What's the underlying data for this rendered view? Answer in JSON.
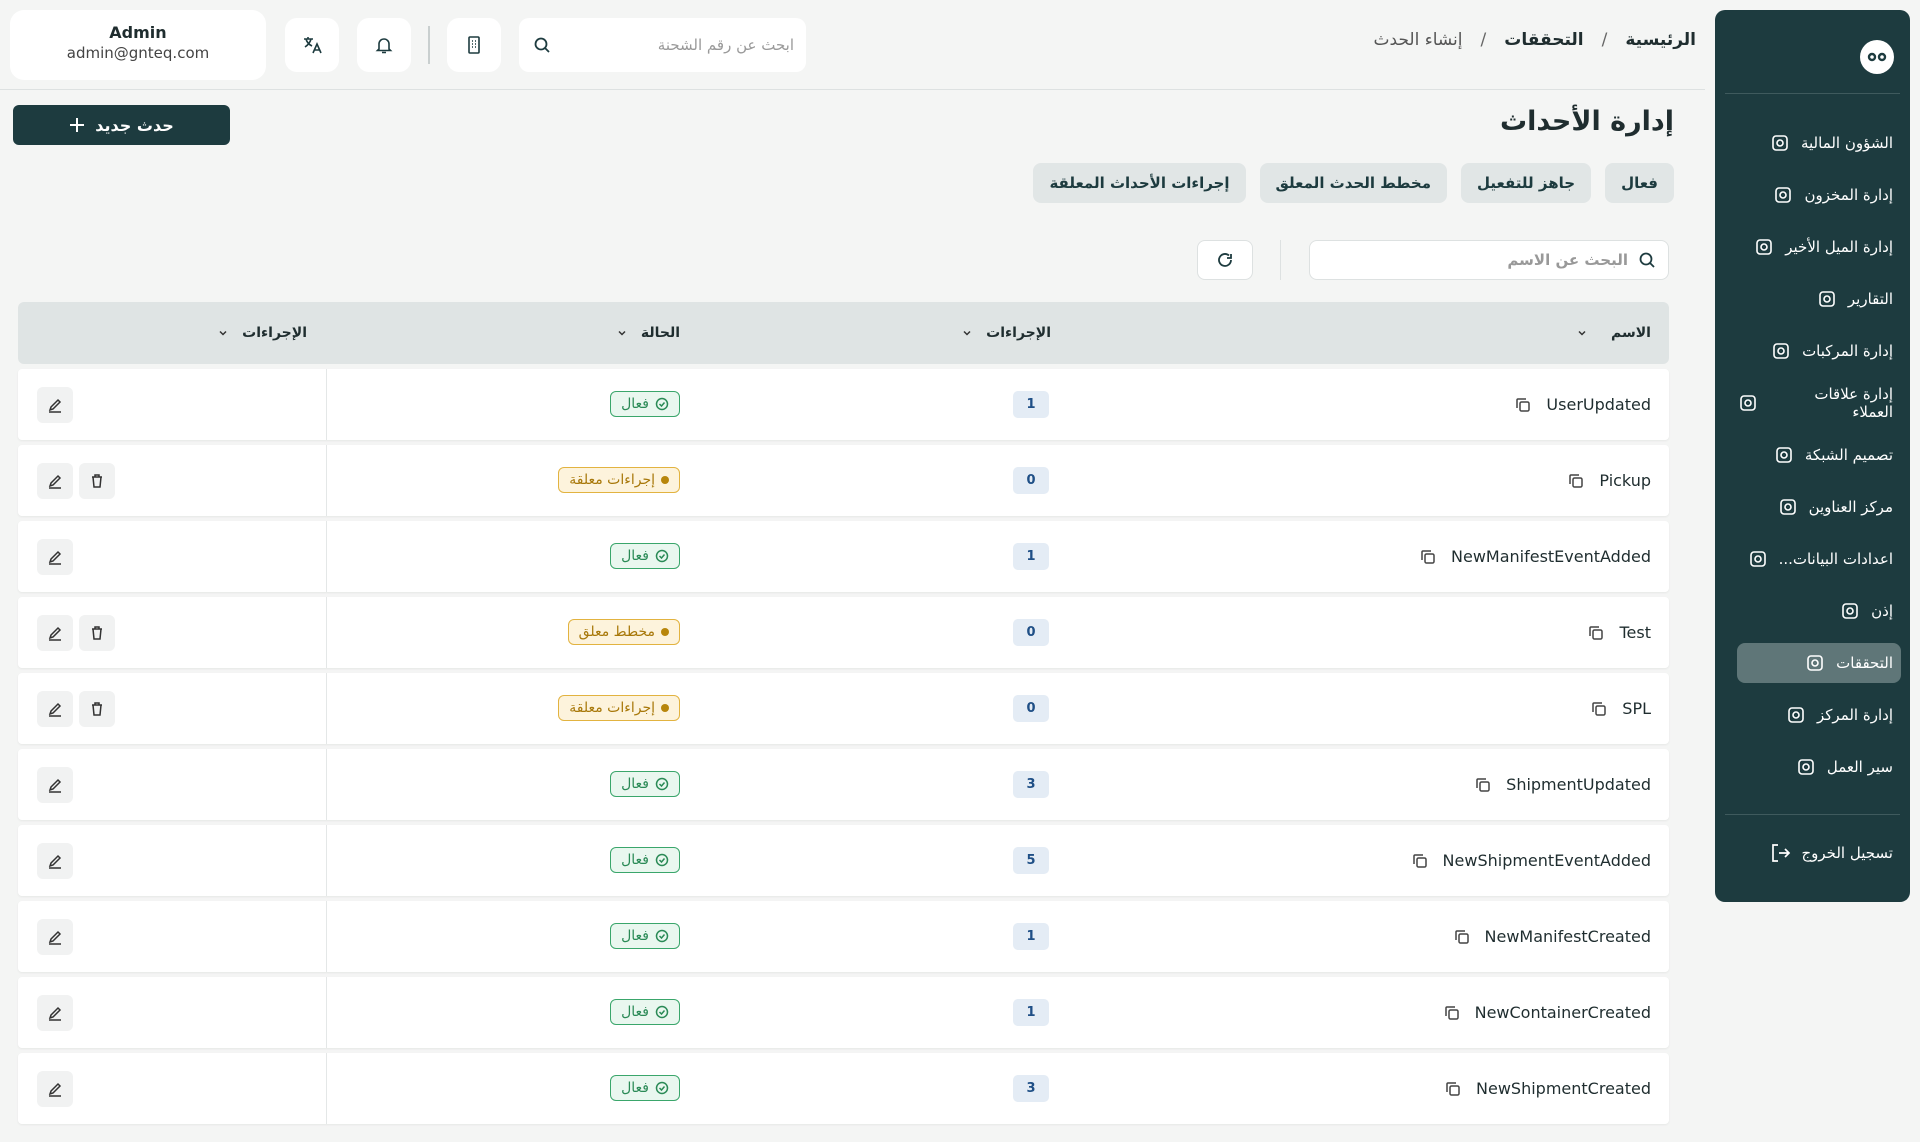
{
  "header": {
    "user_name": "Admin",
    "user_email": "admin@gnteq.com",
    "search_placeholder": "ابحث عن رقم الشحنة",
    "breadcrumb": [
      "الرئيسية",
      "التحققات",
      "إنشاء الحدث"
    ]
  },
  "sidebar": {
    "items": [
      {
        "label": "الشؤون المالية"
      },
      {
        "label": "إدارة المخزون"
      },
      {
        "label": "إدارة الميل الأخير"
      },
      {
        "label": "التقارير"
      },
      {
        "label": "إدارة المركبات"
      },
      {
        "label": "إدارة علاقات العملاء"
      },
      {
        "label": "تصميم الشبكة"
      },
      {
        "label": "مركز العناوين"
      },
      {
        "label": "اعدادات البيانات..."
      },
      {
        "label": "إذن"
      },
      {
        "label": "التحققات",
        "active": true
      },
      {
        "label": "إدارة المركز"
      },
      {
        "label": "سير العمل"
      }
    ],
    "logout": "تسجيل الخروج"
  },
  "page": {
    "title": "إدارة الأحداث",
    "new_button": "حدث جديد",
    "tabs": [
      "فعال",
      "جاهز للتفعيل",
      "مخطط الحدث المعلق",
      "إجراءات الأحداث المعلقة"
    ],
    "name_search_placeholder": "البحث عن الاسم"
  },
  "table": {
    "columns": [
      "الاسم",
      "الإجراءات",
      "الحالة",
      "الإجراءات"
    ],
    "rows": [
      {
        "name": "UserUpdated",
        "count": "1",
        "status": "فعال",
        "status_color": "green",
        "delete": false
      },
      {
        "name": "Pickup",
        "count": "0",
        "status": "إجراءات معلقة",
        "status_color": "amber",
        "delete": true
      },
      {
        "name": "NewManifestEventAdded",
        "count": "1",
        "status": "فعال",
        "status_color": "green",
        "delete": false
      },
      {
        "name": "Test",
        "count": "0",
        "status": "مخطط معلق",
        "status_color": "amber",
        "delete": true
      },
      {
        "name": "SPL",
        "count": "0",
        "status": "إجراءات معلقة",
        "status_color": "amber",
        "delete": true
      },
      {
        "name": "ShipmentUpdated",
        "count": "3",
        "status": "فعال",
        "status_color": "green",
        "delete": false
      },
      {
        "name": "NewShipmentEventAdded",
        "count": "5",
        "status": "فعال",
        "status_color": "green",
        "delete": false
      },
      {
        "name": "NewManifestCreated",
        "count": "1",
        "status": "فعال",
        "status_color": "green",
        "delete": false
      },
      {
        "name": "NewContainerCreated",
        "count": "1",
        "status": "فعال",
        "status_color": "green",
        "delete": false
      },
      {
        "name": "NewShipmentCreated",
        "count": "3",
        "status": "فعال",
        "status_color": "green",
        "delete": false
      }
    ]
  }
}
